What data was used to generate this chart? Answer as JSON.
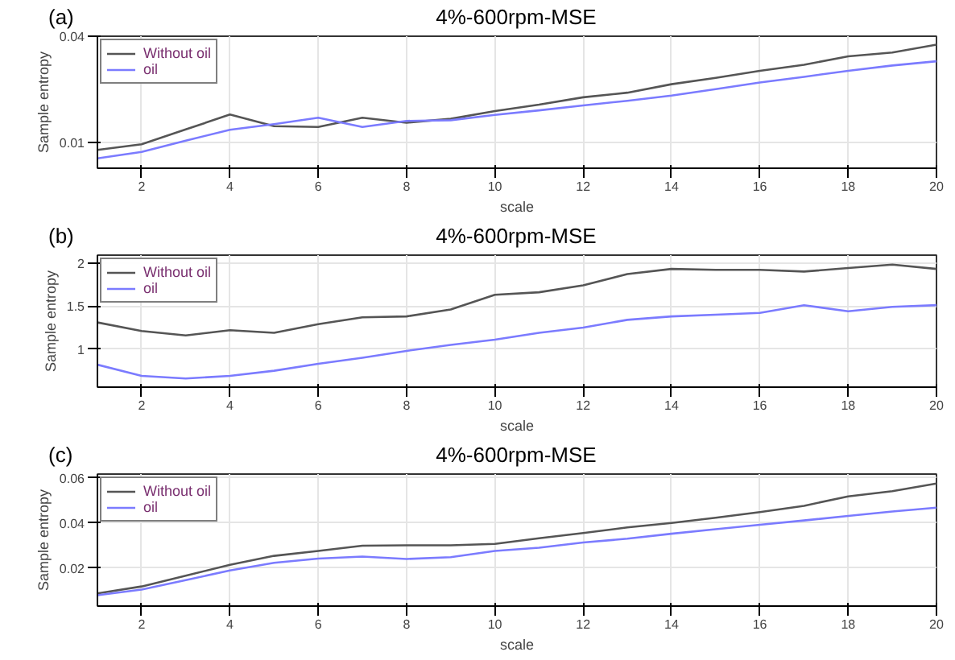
{
  "chart_data": [
    {
      "type": "line",
      "title": "4%-600rpm-MSE",
      "annotations": [
        "(a)"
      ],
      "xlabel": "scale",
      "ylabel": "Sample entropy",
      "x": [
        1,
        2,
        3,
        4,
        5,
        6,
        7,
        8,
        9,
        10,
        11,
        12,
        13,
        14,
        15,
        16,
        17,
        18,
        19,
        20
      ],
      "xlim": [
        1,
        20
      ],
      "xticks": [
        2,
        4,
        6,
        8,
        10,
        12,
        14,
        16,
        18,
        20
      ],
      "ylim": [
        0.0026,
        0.04
      ],
      "yticks": [
        0.01,
        0.04
      ],
      "grid": true,
      "legend": "top left",
      "series": [
        {
          "name": "Without oil",
          "color": "#555555",
          "values": [
            0.0078,
            0.0094,
            0.0136,
            0.0178,
            0.0145,
            0.0143,
            0.0169,
            0.0155,
            0.0166,
            0.0188,
            0.0206,
            0.0227,
            0.024,
            0.0264,
            0.0282,
            0.0302,
            0.0319,
            0.0343,
            0.0354,
            0.0376
          ]
        },
        {
          "name": "oil",
          "color": "#7b7bff",
          "values": [
            0.0054,
            0.0072,
            0.0104,
            0.0135,
            0.0151,
            0.0169,
            0.0143,
            0.016,
            0.0162,
            0.0177,
            0.019,
            0.0204,
            0.0217,
            0.0232,
            0.025,
            0.0269,
            0.0285,
            0.0302,
            0.0317,
            0.0329
          ]
        }
      ]
    },
    {
      "type": "line",
      "title": "4%-600rpm-MSE",
      "annotations": [
        "(b)"
      ],
      "xlabel": "scale",
      "ylabel": "Sample entropy",
      "x": [
        1,
        2,
        3,
        4,
        5,
        6,
        7,
        8,
        9,
        10,
        11,
        12,
        13,
        14,
        15,
        16,
        17,
        18,
        19,
        20
      ],
      "xlim": [
        1,
        20
      ],
      "xticks": [
        2,
        4,
        6,
        8,
        10,
        12,
        14,
        16,
        18,
        20
      ],
      "ylim": [
        0.56,
        2.09
      ],
      "yticks": [
        1,
        1.5,
        2
      ],
      "grid": true,
      "legend": "top left",
      "series": [
        {
          "name": "Without oil",
          "color": "#555555",
          "values": [
            1.31,
            1.21,
            1.16,
            1.22,
            1.19,
            1.29,
            1.37,
            1.38,
            1.46,
            1.63,
            1.66,
            1.74,
            1.87,
            1.93,
            1.92,
            1.92,
            1.9,
            1.94,
            1.98,
            1.93
          ]
        },
        {
          "name": "oil",
          "color": "#7b7bff",
          "values": [
            0.82,
            0.69,
            0.66,
            0.69,
            0.75,
            0.83,
            0.9,
            0.98,
            1.05,
            1.11,
            1.19,
            1.25,
            1.34,
            1.38,
            1.4,
            1.42,
            1.51,
            1.44,
            1.49,
            1.51
          ]
        }
      ]
    },
    {
      "type": "line",
      "title": "4%-600rpm-MSE",
      "annotations": [
        "(c)"
      ],
      "xlabel": "scale",
      "ylabel": "Sample entropy",
      "x": [
        1,
        2,
        3,
        4,
        5,
        6,
        7,
        8,
        9,
        10,
        11,
        12,
        13,
        14,
        15,
        16,
        17,
        18,
        19,
        20
      ],
      "xlim": [
        1,
        20
      ],
      "xticks": [
        2,
        4,
        6,
        8,
        10,
        12,
        14,
        16,
        18,
        20
      ],
      "ylim": [
        0.0031,
        0.0617
      ],
      "yticks": [
        0.02,
        0.04,
        0.06
      ],
      "grid": true,
      "legend": "top left",
      "series": [
        {
          "name": "Without oil",
          "color": "#555555",
          "values": [
            0.0087,
            0.0118,
            0.0166,
            0.0214,
            0.0254,
            0.0276,
            0.0299,
            0.0301,
            0.0301,
            0.0307,
            0.0332,
            0.0355,
            0.038,
            0.04,
            0.0423,
            0.0448,
            0.0476,
            0.0518,
            0.0541,
            0.0575
          ]
        },
        {
          "name": "oil",
          "color": "#7b7bff",
          "values": [
            0.0079,
            0.0104,
            0.0146,
            0.0189,
            0.0223,
            0.0242,
            0.0251,
            0.024,
            0.0248,
            0.0276,
            0.029,
            0.0313,
            0.033,
            0.0352,
            0.0372,
            0.0392,
            0.0411,
            0.0431,
            0.0451,
            0.0468
          ]
        }
      ]
    }
  ]
}
